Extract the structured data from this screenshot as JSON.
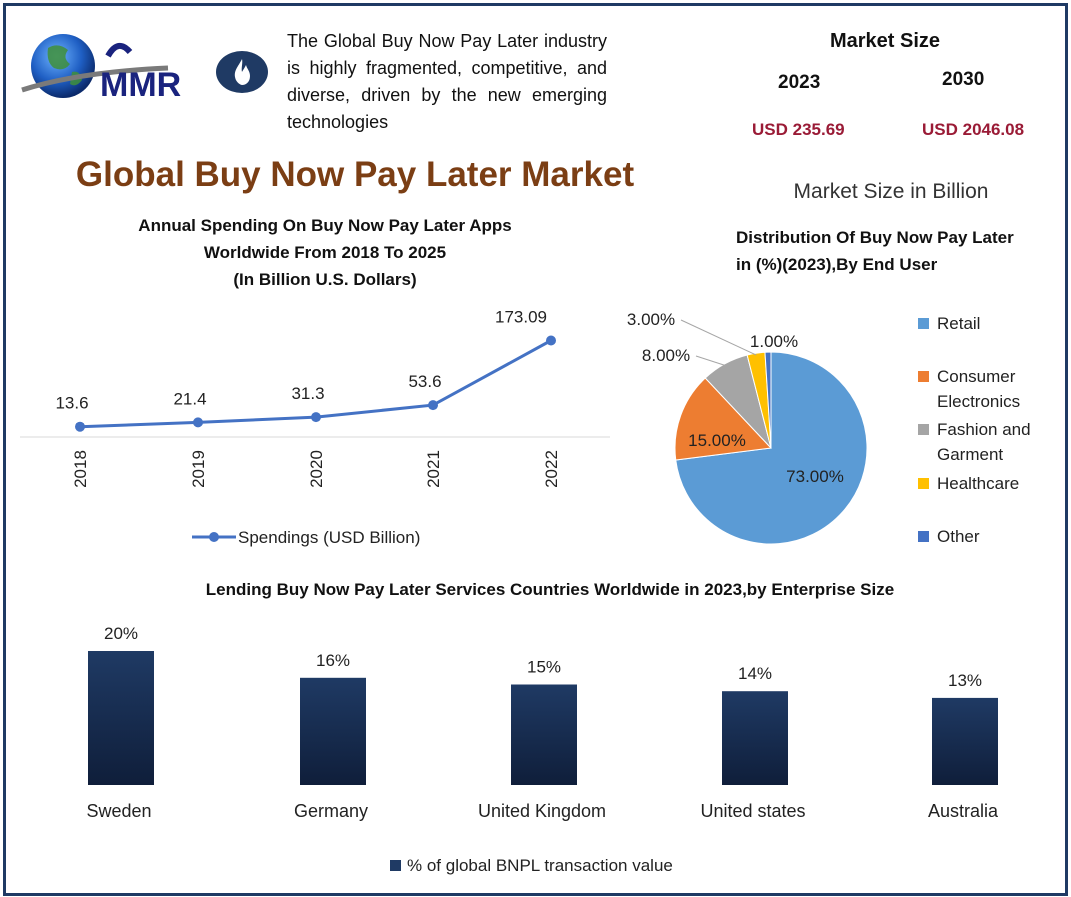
{
  "brand": {
    "logo_text": "MMR"
  },
  "intro_text": "The Global Buy Now Pay Later industry is highly fragmented, competitive, and diverse, driven by the new emerging technologies",
  "market_size": {
    "title": "Market Size",
    "year_a": "2023",
    "year_b": "2030",
    "value_a": "USD 235.69",
    "value_b": "USD 2046.08",
    "unit": "Market Size in Billion"
  },
  "main_title": "Global Buy Now Pay Later Market",
  "colors": {
    "line": "#4472c4",
    "bar_top": "#1f3a64",
    "bar_bottom": "#0f1e3a",
    "retail": "#5b9bd5",
    "consumer_electronics": "#ed7d31",
    "fashion": "#a5a5a5",
    "healthcare": "#ffc000",
    "other": "#4472c4",
    "value_red": "#9a1b36",
    "title_brown": "#7b3e14"
  },
  "chart_data": [
    {
      "type": "line",
      "title_lines": [
        "Annual Spending On Buy Now Pay Later Apps",
        "Worldwide  From 2018 To 2025",
        "(In Billion U.S. Dollars)"
      ],
      "x": [
        "2018",
        "2019",
        "2020",
        "2021",
        "2022"
      ],
      "series": [
        {
          "name": "Spendings (USD Billion)",
          "values": [
            13.6,
            21.4,
            31.3,
            53.6,
            173.09
          ]
        }
      ],
      "data_labels": [
        "13.6",
        "21.4",
        "31.3",
        "53.6",
        "173.09"
      ],
      "legend_position": "bottom",
      "grid": false
    },
    {
      "type": "pie",
      "title_lines": [
        "Distribution Of Buy Now Pay Later",
        "in (%)(2023),By End User"
      ],
      "slices": [
        {
          "label": "Retail",
          "legend_lines": [
            "Retail"
          ],
          "value": 73,
          "display": "73.00%"
        },
        {
          "label": "Consumer Electronics",
          "legend_lines": [
            "Consumer",
            "Electronics"
          ],
          "value": 15,
          "display": "15.00%"
        },
        {
          "label": "Fashion and Garment",
          "legend_lines": [
            "Fashion and",
            "Garment"
          ],
          "value": 8,
          "display": "8.00%"
        },
        {
          "label": "Healthcare",
          "legend_lines": [
            "Healthcare"
          ],
          "value": 3,
          "display": "3.00%"
        },
        {
          "label": "Other",
          "legend_lines": [
            "Other"
          ],
          "value": 1,
          "display": "1.00%"
        }
      ],
      "legend_position": "right"
    },
    {
      "type": "bar",
      "title": "Lending Buy Now Pay Later Services Countries Worldwide in 2023,by Enterprise Size",
      "categories": [
        "Sweden",
        "Germany",
        "United Kingdom",
        "United states",
        "Australia"
      ],
      "series": [
        {
          "name": "% of global BNPL transaction value",
          "values": [
            20,
            16,
            15,
            14,
            13
          ]
        }
      ],
      "data_labels": [
        "20%",
        "16%",
        "15%",
        "14%",
        "13%"
      ],
      "legend_position": "bottom",
      "grid": false
    }
  ]
}
